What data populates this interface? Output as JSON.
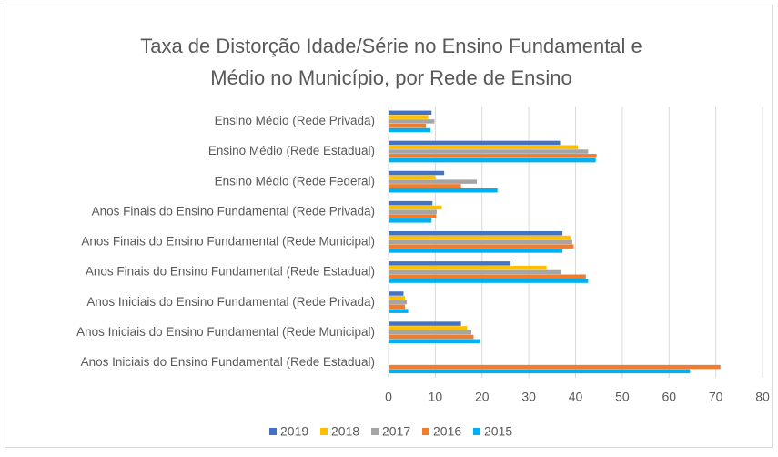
{
  "chart_data": {
    "type": "bar",
    "orientation": "horizontal",
    "title": "Taxa de Distorção Idade/Série no Ensino Fundamental e Médio no Município, por Rede de Ensino",
    "categories": [
      "Ensino Médio (Rede Privada)",
      "Ensino Médio (Rede Estadual)",
      "Ensino Médio (Rede Federal)",
      "Anos Finais do Ensino Fundamental (Rede Privada)",
      "Anos Finais do Ensino Fundamental (Rede Municipal)",
      "Anos Finais do Ensino Fundamental (Rede Estadual)",
      "Anos Iniciais do Ensino Fundamental (Rede Privada)",
      "Anos Iniciais do Ensino Fundamental (Rede Municipal)",
      "Anos Iniciais do Ensino Fundamental (Rede Estadual)"
    ],
    "series": [
      {
        "name": "2019",
        "color": "#4472c4",
        "values": [
          9.2,
          36.7,
          11.9,
          9.4,
          37.2,
          26.1,
          3.2,
          15.5,
          null
        ]
      },
      {
        "name": "2018",
        "color": "#ffc000",
        "values": [
          8.5,
          40.5,
          10.0,
          11.4,
          38.9,
          33.8,
          3.5,
          16.8,
          null
        ]
      },
      {
        "name": "2017",
        "color": "#a5a5a5",
        "values": [
          9.8,
          42.7,
          18.9,
          10.3,
          39.3,
          36.8,
          3.9,
          17.7,
          null
        ]
      },
      {
        "name": "2016",
        "color": "#ed7d31",
        "values": [
          8.0,
          44.5,
          15.5,
          10.2,
          39.6,
          42.2,
          3.5,
          18.2,
          71.0
        ]
      },
      {
        "name": "2015",
        "color": "#00b0f0",
        "values": [
          9.0,
          44.3,
          23.3,
          9.2,
          37.2,
          42.7,
          4.2,
          19.6,
          64.5
        ]
      }
    ],
    "xlim": [
      0,
      80
    ],
    "xticks": [
      0,
      10,
      20,
      30,
      40,
      50,
      60,
      70,
      80
    ],
    "grid": true,
    "legend": "bottom"
  }
}
